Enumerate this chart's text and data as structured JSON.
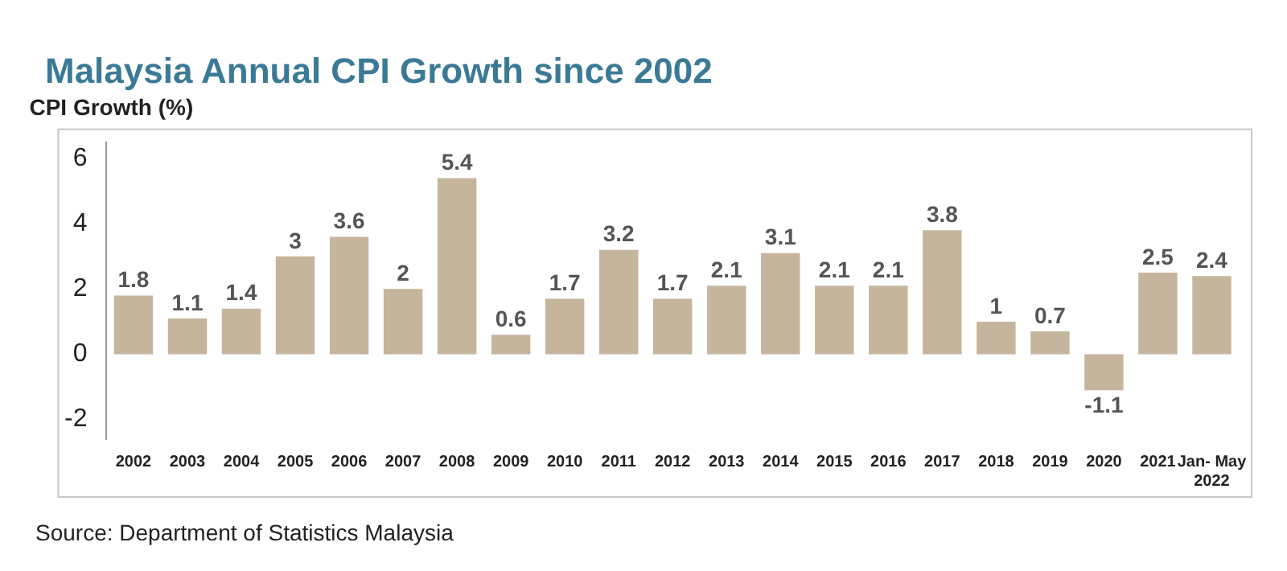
{
  "chart_data": {
    "type": "bar",
    "title": "Malaysia Annual CPI Growth since 2002",
    "ylabel": "CPI Growth (%)",
    "categories": [
      "2002",
      "2003",
      "2004",
      "2005",
      "2006",
      "2007",
      "2008",
      "2009",
      "2010",
      "2011",
      "2012",
      "2013",
      "2014",
      "2015",
      "2016",
      "2017",
      "2018",
      "2019",
      "2020",
      "2021",
      "Jan- May 2022"
    ],
    "values": [
      1.8,
      1.1,
      1.4,
      3,
      3.6,
      2,
      5.4,
      0.6,
      1.7,
      3.2,
      1.7,
      2.1,
      3.1,
      2.1,
      2.1,
      3.8,
      1,
      0.7,
      -1.1,
      2.5,
      2.4
    ],
    "color": "#c4b59c",
    "data_labels": true,
    "grid": false,
    "legend": false,
    "ylim": [
      -2.6,
      6.5
    ],
    "yticks": [
      -2,
      0,
      2,
      4,
      6
    ],
    "annotations": [
      "Source: Department of Statistics Malaysia"
    ]
  }
}
